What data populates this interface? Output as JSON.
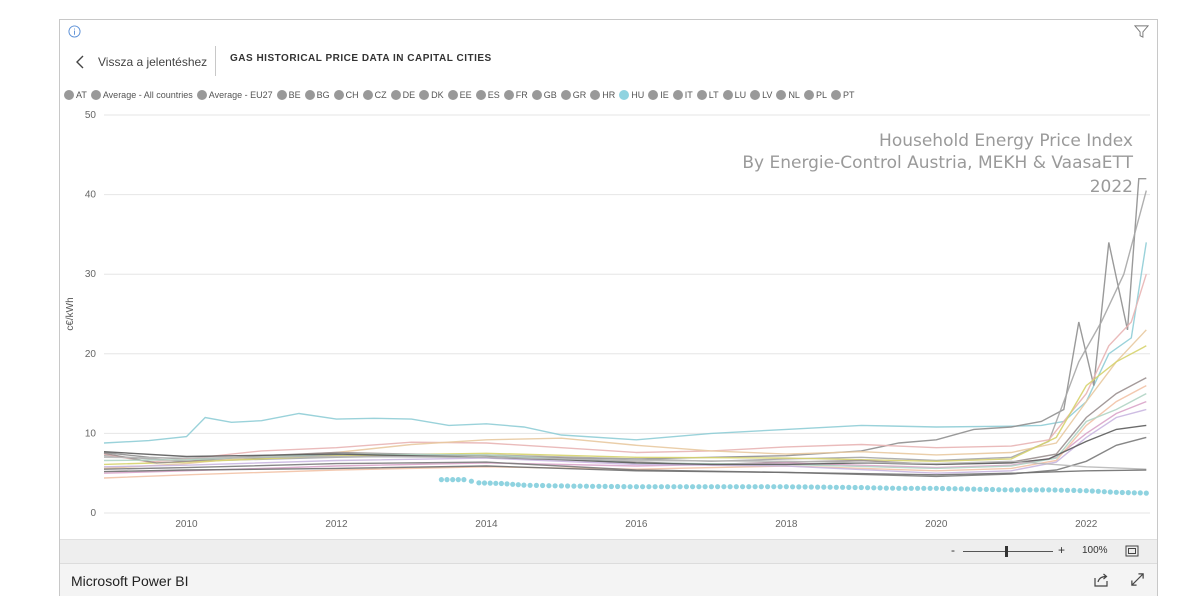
{
  "header": {
    "back_label": "Vissza a jelentéshez",
    "title": "GAS HISTORICAL PRICE DATA IN CAPITAL CITIES"
  },
  "legend": [
    {
      "label": "AT",
      "color": "#999999"
    },
    {
      "label": "Average - All countries",
      "color": "#999999"
    },
    {
      "label": "Average - EU27",
      "color": "#999999"
    },
    {
      "label": "BE",
      "color": "#999999"
    },
    {
      "label": "BG",
      "color": "#999999"
    },
    {
      "label": "CH",
      "color": "#999999"
    },
    {
      "label": "CZ",
      "color": "#999999"
    },
    {
      "label": "DE",
      "color": "#999999"
    },
    {
      "label": "DK",
      "color": "#999999"
    },
    {
      "label": "EE",
      "color": "#999999"
    },
    {
      "label": "ES",
      "color": "#999999"
    },
    {
      "label": "FR",
      "color": "#999999"
    },
    {
      "label": "GB",
      "color": "#999999"
    },
    {
      "label": "GR",
      "color": "#999999"
    },
    {
      "label": "HR",
      "color": "#999999"
    },
    {
      "label": "HU",
      "color": "#8fd3e0"
    },
    {
      "label": "IE",
      "color": "#999999"
    },
    {
      "label": "IT",
      "color": "#999999"
    },
    {
      "label": "LT",
      "color": "#999999"
    },
    {
      "label": "LU",
      "color": "#999999"
    },
    {
      "label": "LV",
      "color": "#999999"
    },
    {
      "label": "NL",
      "color": "#999999"
    },
    {
      "label": "PL",
      "color": "#999999"
    },
    {
      "label": "PT",
      "color": "#999999"
    }
  ],
  "watermark": [
    "Household Energy Price Index",
    "By Energie-Control Austria, MEKH & VaasaETT",
    "2022"
  ],
  "zoom": {
    "minus": "-",
    "plus": "+",
    "level": "100%"
  },
  "footer": {
    "title": "Microsoft Power BI"
  },
  "chart_data": {
    "type": "line",
    "ylabel": "c€/kWh",
    "xlabel": "",
    "ylim": [
      0,
      50
    ],
    "xlim": [
      2008.9,
      2022.85
    ],
    "yticks": [
      0,
      10,
      20,
      30,
      40,
      50
    ],
    "xticks": [
      2010,
      2012,
      2014,
      2016,
      2018,
      2020,
      2022
    ],
    "grid": true,
    "legend_position": "top",
    "series": [
      {
        "color": "#8fcdd6",
        "x": [
          2008.9,
          2009.5,
          2010,
          2010.25,
          2010.6,
          2011,
          2011.5,
          2012,
          2012.5,
          2013,
          2013.5,
          2014,
          2014.5,
          2015,
          2016,
          2017,
          2018,
          2019,
          2020,
          2021,
          2021.4,
          2021.7,
          2022,
          2022.3,
          2022.6,
          2022.8
        ],
        "y": [
          8.8,
          9.1,
          9.6,
          12.0,
          11.4,
          11.6,
          12.5,
          11.8,
          11.9,
          11.8,
          11.0,
          11.2,
          10.8,
          9.8,
          9.2,
          10.0,
          10.5,
          11.0,
          10.8,
          10.9,
          11.0,
          11.5,
          14.0,
          20.0,
          22.0,
          34.0
        ]
      },
      {
        "color": "#8f8f8f",
        "x": [
          2008.9,
          2009.5,
          2010,
          2011,
          2012,
          2013,
          2014,
          2015,
          2016,
          2017,
          2018,
          2019,
          2019.5,
          2020,
          2020.5,
          2021,
          2021.4,
          2021.7,
          2021.9,
          2022.1,
          2022.3,
          2022.55,
          2022.7,
          2022.8
        ],
        "y": [
          7.6,
          7.0,
          6.8,
          6.9,
          7.3,
          7.1,
          7.0,
          6.9,
          6.8,
          7.0,
          7.2,
          7.8,
          8.8,
          9.2,
          10.5,
          10.8,
          11.5,
          13.0,
          24.0,
          16.0,
          34.0,
          23.0,
          42.0,
          42.0
        ]
      },
      {
        "color": "#a6a6a6",
        "x": [
          2008.9,
          2010,
          2012,
          2014,
          2016,
          2017,
          2018,
          2019,
          2020,
          2021,
          2021.5,
          2021.9,
          2022.2,
          2022.5,
          2022.8
        ],
        "y": [
          7.2,
          6.5,
          7.0,
          7.3,
          6.8,
          6.5,
          6.8,
          7.0,
          6.6,
          7.0,
          9.0,
          19.0,
          24.0,
          30.0,
          40.5
        ]
      },
      {
        "color": "#e8b4b4",
        "x": [
          2008.9,
          2009.5,
          2010,
          2011,
          2012,
          2013,
          2014,
          2015,
          2016,
          2017,
          2018,
          2019,
          2020,
          2021,
          2021.5,
          2022,
          2022.3,
          2022.6,
          2022.8
        ],
        "y": [
          7.4,
          6.4,
          6.8,
          7.8,
          8.2,
          8.9,
          8.8,
          8.2,
          7.6,
          7.8,
          8.3,
          8.6,
          8.2,
          8.4,
          9.2,
          15.0,
          21.0,
          24.0,
          30.0
        ]
      },
      {
        "color": "#e8c9a0",
        "x": [
          2008.9,
          2010,
          2011,
          2012,
          2013,
          2014,
          2015,
          2016,
          2017,
          2018,
          2019,
          2020,
          2021,
          2021.6,
          2022,
          2022.4,
          2022.8
        ],
        "y": [
          5.6,
          6.2,
          7.1,
          7.6,
          8.6,
          9.2,
          9.4,
          8.5,
          7.8,
          7.4,
          7.7,
          7.3,
          7.6,
          8.8,
          14.0,
          19.0,
          23.0
        ]
      },
      {
        "color": "#d6d36d",
        "x": [
          2008.9,
          2010,
          2012,
          2014,
          2016,
          2018,
          2020,
          2021,
          2021.6,
          2022,
          2022.4,
          2022.8
        ],
        "y": [
          6.1,
          6.4,
          7.2,
          7.5,
          7.0,
          6.9,
          6.5,
          6.8,
          9.5,
          16.0,
          19.0,
          21.0
        ]
      },
      {
        "color": "#9a8f8f",
        "x": [
          2008.9,
          2009.6,
          2010,
          2011,
          2012,
          2013,
          2014,
          2015,
          2016,
          2017,
          2018,
          2019,
          2020,
          2021,
          2021.6,
          2022,
          2022.4,
          2022.8
        ],
        "y": [
          7.5,
          6.3,
          6.5,
          7.2,
          7.6,
          7.4,
          7.2,
          6.9,
          6.4,
          6.1,
          6.4,
          6.6,
          6.1,
          6.4,
          7.4,
          12.0,
          15.0,
          17.0
        ]
      },
      {
        "color": "#d9a4c9",
        "x": [
          2008.9,
          2010,
          2012,
          2014,
          2016,
          2018,
          2020,
          2021,
          2021.6,
          2022,
          2022.4,
          2022.8
        ],
        "y": [
          5.0,
          5.3,
          5.9,
          6.3,
          5.9,
          6.3,
          5.7,
          6.0,
          7.0,
          10.0,
          12.5,
          14.0
        ]
      },
      {
        "color": "#f2c2a6",
        "x": [
          2008.9,
          2010,
          2012,
          2014,
          2016,
          2018,
          2020,
          2021,
          2021.6,
          2022,
          2022.4,
          2022.8
        ],
        "y": [
          4.4,
          4.8,
          5.4,
          5.8,
          5.5,
          5.9,
          5.3,
          5.6,
          6.6,
          11.0,
          14.0,
          16.0
        ]
      },
      {
        "color": "#b0d4c4",
        "x": [
          2008.9,
          2010,
          2012,
          2014,
          2016,
          2018,
          2020,
          2021,
          2021.6,
          2022,
          2022.4,
          2022.8
        ],
        "y": [
          6.6,
          6.7,
          7.4,
          7.3,
          6.3,
          6.1,
          5.6,
          5.9,
          6.9,
          11.5,
          13.0,
          15.0
        ]
      },
      {
        "color": "#c9b6e0",
        "x": [
          2008.9,
          2010,
          2012,
          2014,
          2016,
          2018,
          2020,
          2021,
          2021.6,
          2022,
          2022.4,
          2022.8
        ],
        "y": [
          5.8,
          6.0,
          6.6,
          6.9,
          6.1,
          5.9,
          5.0,
          5.3,
          6.4,
          9.5,
          12.0,
          13.0
        ]
      },
      {
        "color": "#5b5b5b",
        "x": [
          2008.9,
          2010,
          2012,
          2013,
          2014,
          2015,
          2016,
          2017,
          2018,
          2019,
          2020,
          2021,
          2021.5,
          2022,
          2022.4,
          2022.8
        ],
        "y": [
          7.7,
          7.1,
          7.4,
          7.2,
          7.0,
          6.7,
          6.3,
          6.1,
          6.1,
          6.3,
          6.1,
          6.3,
          6.8,
          9.0,
          10.5,
          11.0
        ]
      },
      {
        "color": "#7a7a7a",
        "x": [
          2008.9,
          2010,
          2012,
          2014,
          2016,
          2018,
          2020,
          2021,
          2021.6,
          2022,
          2022.4,
          2022.8
        ],
        "y": [
          5.5,
          5.7,
          6.2,
          6.4,
          5.4,
          5.1,
          4.6,
          4.9,
          5.4,
          6.5,
          8.5,
          9.5
        ]
      },
      {
        "color": "#b8b8b8",
        "x": [
          2008.9,
          2010,
          2012,
          2014,
          2016,
          2018,
          2020,
          2021,
          2022,
          2022.8
        ],
        "y": [
          7.0,
          6.9,
          7.1,
          7.0,
          6.6,
          6.5,
          6.2,
          6.5,
          5.8,
          5.5
        ]
      },
      {
        "color": "#6f6f6f",
        "x": [
          2008.9,
          2010,
          2012,
          2014,
          2016,
          2018,
          2020,
          2021,
          2022,
          2022.8
        ],
        "y": [
          5.2,
          5.4,
          5.6,
          5.9,
          5.3,
          5.1,
          4.8,
          5.0,
          5.3,
          5.4
        ]
      }
    ],
    "highlighted_series": {
      "name": "HU",
      "color": "#8fd3e0",
      "x": [
        2013.4,
        2013.7,
        2013.9,
        2014.2,
        2014.5,
        2015,
        2016,
        2017,
        2018,
        2019,
        2019.5,
        2020,
        2020.5,
        2021,
        2021.5,
        2022,
        2022.4,
        2022.8
      ],
      "y": [
        4.2,
        4.2,
        3.8,
        3.7,
        3.5,
        3.4,
        3.3,
        3.3,
        3.3,
        3.2,
        3.1,
        3.1,
        3.0,
        2.9,
        2.9,
        2.8,
        2.6,
        2.5
      ]
    }
  }
}
